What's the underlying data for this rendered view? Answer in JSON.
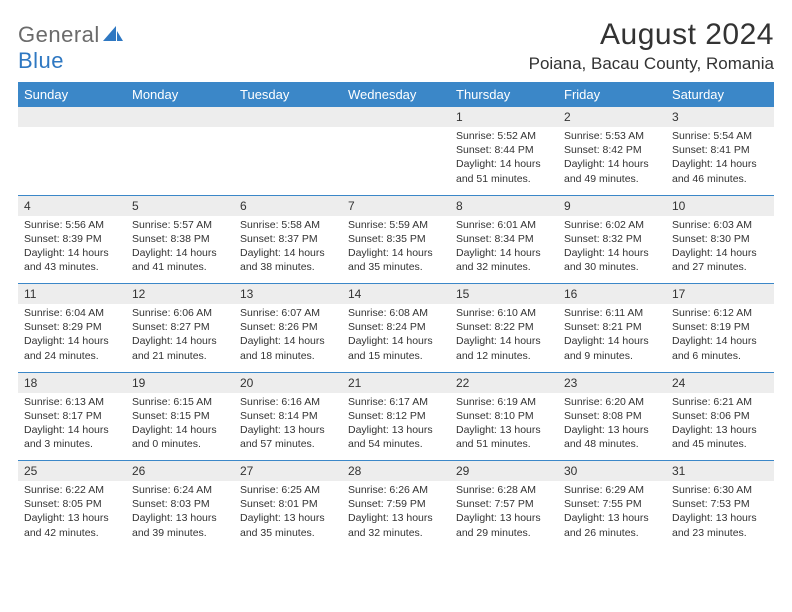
{
  "logo": {
    "brand_a": "General",
    "brand_b": "Blue"
  },
  "title": "August 2024",
  "location": "Poiana, Bacau County, Romania",
  "header_bg": "#3b87c8",
  "daynum_bg": "#ededed",
  "weekdays": [
    "Sunday",
    "Monday",
    "Tuesday",
    "Wednesday",
    "Thursday",
    "Friday",
    "Saturday"
  ],
  "weeks": [
    [
      null,
      null,
      null,
      null,
      {
        "n": "1",
        "sunrise": "5:52 AM",
        "sunset": "8:44 PM",
        "dl1": "Daylight: 14 hours",
        "dl2": "and 51 minutes."
      },
      {
        "n": "2",
        "sunrise": "5:53 AM",
        "sunset": "8:42 PM",
        "dl1": "Daylight: 14 hours",
        "dl2": "and 49 minutes."
      },
      {
        "n": "3",
        "sunrise": "5:54 AM",
        "sunset": "8:41 PM",
        "dl1": "Daylight: 14 hours",
        "dl2": "and 46 minutes."
      }
    ],
    [
      {
        "n": "4",
        "sunrise": "5:56 AM",
        "sunset": "8:39 PM",
        "dl1": "Daylight: 14 hours",
        "dl2": "and 43 minutes."
      },
      {
        "n": "5",
        "sunrise": "5:57 AM",
        "sunset": "8:38 PM",
        "dl1": "Daylight: 14 hours",
        "dl2": "and 41 minutes."
      },
      {
        "n": "6",
        "sunrise": "5:58 AM",
        "sunset": "8:37 PM",
        "dl1": "Daylight: 14 hours",
        "dl2": "and 38 minutes."
      },
      {
        "n": "7",
        "sunrise": "5:59 AM",
        "sunset": "8:35 PM",
        "dl1": "Daylight: 14 hours",
        "dl2": "and 35 minutes."
      },
      {
        "n": "8",
        "sunrise": "6:01 AM",
        "sunset": "8:34 PM",
        "dl1": "Daylight: 14 hours",
        "dl2": "and 32 minutes."
      },
      {
        "n": "9",
        "sunrise": "6:02 AM",
        "sunset": "8:32 PM",
        "dl1": "Daylight: 14 hours",
        "dl2": "and 30 minutes."
      },
      {
        "n": "10",
        "sunrise": "6:03 AM",
        "sunset": "8:30 PM",
        "dl1": "Daylight: 14 hours",
        "dl2": "and 27 minutes."
      }
    ],
    [
      {
        "n": "11",
        "sunrise": "6:04 AM",
        "sunset": "8:29 PM",
        "dl1": "Daylight: 14 hours",
        "dl2": "and 24 minutes."
      },
      {
        "n": "12",
        "sunrise": "6:06 AM",
        "sunset": "8:27 PM",
        "dl1": "Daylight: 14 hours",
        "dl2": "and 21 minutes."
      },
      {
        "n": "13",
        "sunrise": "6:07 AM",
        "sunset": "8:26 PM",
        "dl1": "Daylight: 14 hours",
        "dl2": "and 18 minutes."
      },
      {
        "n": "14",
        "sunrise": "6:08 AM",
        "sunset": "8:24 PM",
        "dl1": "Daylight: 14 hours",
        "dl2": "and 15 minutes."
      },
      {
        "n": "15",
        "sunrise": "6:10 AM",
        "sunset": "8:22 PM",
        "dl1": "Daylight: 14 hours",
        "dl2": "and 12 minutes."
      },
      {
        "n": "16",
        "sunrise": "6:11 AM",
        "sunset": "8:21 PM",
        "dl1": "Daylight: 14 hours",
        "dl2": "and 9 minutes."
      },
      {
        "n": "17",
        "sunrise": "6:12 AM",
        "sunset": "8:19 PM",
        "dl1": "Daylight: 14 hours",
        "dl2": "and 6 minutes."
      }
    ],
    [
      {
        "n": "18",
        "sunrise": "6:13 AM",
        "sunset": "8:17 PM",
        "dl1": "Daylight: 14 hours",
        "dl2": "and 3 minutes."
      },
      {
        "n": "19",
        "sunrise": "6:15 AM",
        "sunset": "8:15 PM",
        "dl1": "Daylight: 14 hours",
        "dl2": "and 0 minutes."
      },
      {
        "n": "20",
        "sunrise": "6:16 AM",
        "sunset": "8:14 PM",
        "dl1": "Daylight: 13 hours",
        "dl2": "and 57 minutes."
      },
      {
        "n": "21",
        "sunrise": "6:17 AM",
        "sunset": "8:12 PM",
        "dl1": "Daylight: 13 hours",
        "dl2": "and 54 minutes."
      },
      {
        "n": "22",
        "sunrise": "6:19 AM",
        "sunset": "8:10 PM",
        "dl1": "Daylight: 13 hours",
        "dl2": "and 51 minutes."
      },
      {
        "n": "23",
        "sunrise": "6:20 AM",
        "sunset": "8:08 PM",
        "dl1": "Daylight: 13 hours",
        "dl2": "and 48 minutes."
      },
      {
        "n": "24",
        "sunrise": "6:21 AM",
        "sunset": "8:06 PM",
        "dl1": "Daylight: 13 hours",
        "dl2": "and 45 minutes."
      }
    ],
    [
      {
        "n": "25",
        "sunrise": "6:22 AM",
        "sunset": "8:05 PM",
        "dl1": "Daylight: 13 hours",
        "dl2": "and 42 minutes."
      },
      {
        "n": "26",
        "sunrise": "6:24 AM",
        "sunset": "8:03 PM",
        "dl1": "Daylight: 13 hours",
        "dl2": "and 39 minutes."
      },
      {
        "n": "27",
        "sunrise": "6:25 AM",
        "sunset": "8:01 PM",
        "dl1": "Daylight: 13 hours",
        "dl2": "and 35 minutes."
      },
      {
        "n": "28",
        "sunrise": "6:26 AM",
        "sunset": "7:59 PM",
        "dl1": "Daylight: 13 hours",
        "dl2": "and 32 minutes."
      },
      {
        "n": "29",
        "sunrise": "6:28 AM",
        "sunset": "7:57 PM",
        "dl1": "Daylight: 13 hours",
        "dl2": "and 29 minutes."
      },
      {
        "n": "30",
        "sunrise": "6:29 AM",
        "sunset": "7:55 PM",
        "dl1": "Daylight: 13 hours",
        "dl2": "and 26 minutes."
      },
      {
        "n": "31",
        "sunrise": "6:30 AM",
        "sunset": "7:53 PM",
        "dl1": "Daylight: 13 hours",
        "dl2": "and 23 minutes."
      }
    ]
  ]
}
